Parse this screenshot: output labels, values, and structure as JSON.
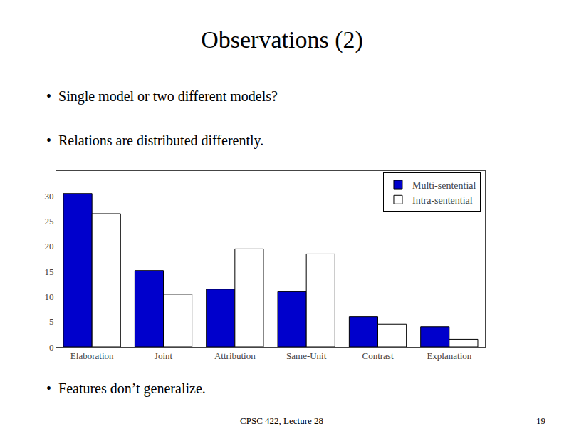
{
  "chart_data": {
    "type": "bar",
    "title": "Observations (2)",
    "annotations": [
      "•  Single model or two different models?",
      "•  Relations are distributed differently.",
      "•  Features don’t generalize.",
      "CPSC 422, Lecture 28",
      "19"
    ],
    "categories": [
      "Elaboration",
      "Joint",
      "Attribution",
      "Same-Unit",
      "Contrast",
      "Explanation"
    ],
    "series": [
      {
        "name": "Multi-sentential",
        "color": "#0000CC",
        "values": [
          30.5,
          15.2,
          11.5,
          11.0,
          6.0,
          4.0
        ]
      },
      {
        "name": "Intra-sentential",
        "color": "#FFFFFF",
        "values": [
          26.5,
          10.5,
          19.5,
          18.5,
          4.5,
          1.5
        ]
      }
    ],
    "ylim": [
      0,
      35
    ],
    "yticks": [
      0,
      5,
      10,
      15,
      20,
      25,
      30
    ],
    "legend": "upper right",
    "grid": false
  }
}
